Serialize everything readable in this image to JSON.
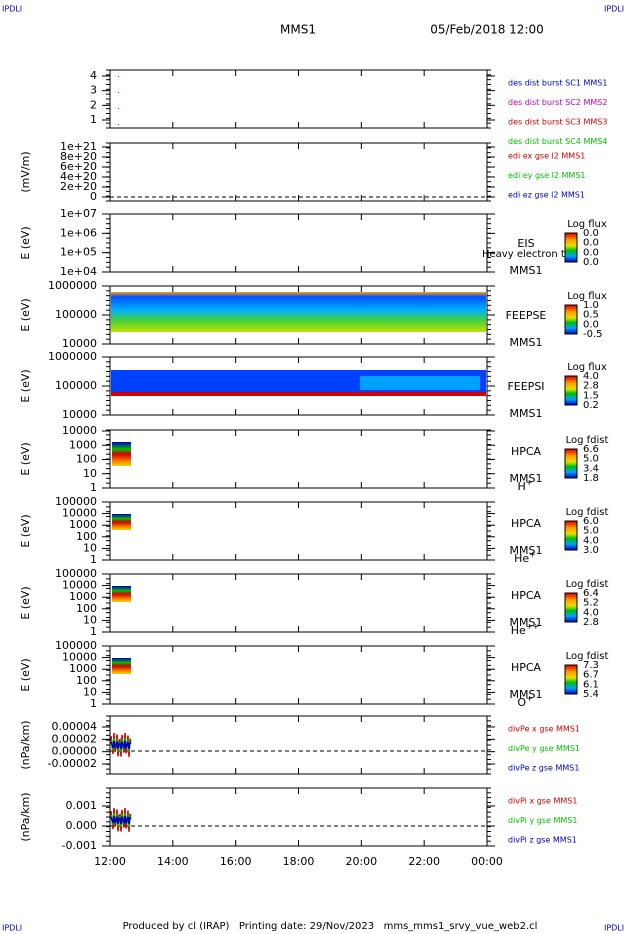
{
  "corner_left": "IPDLI",
  "corner_right": "IPDLI",
  "header": {
    "mission": "MMS1",
    "date": "05/Feb/2018 12:00"
  },
  "panels": [
    {
      "ylabel": "",
      "yticks": [
        "4",
        "3",
        "2",
        "1"
      ],
      "legend": [
        {
          "text": "des dist burst SC1 MMS1",
          "color": "#0000c0"
        },
        {
          "text": "des dist burst SC2 MMS2",
          "color": "#c000c0"
        },
        {
          "text": "des dist burst SC3 MMS3",
          "color": "#d00000"
        },
        {
          "text": "des dist burst SC4 MMS4",
          "color": "#00c000"
        }
      ]
    },
    {
      "ylabel": "(mV/m)",
      "yticks": [
        "1e+21",
        "8e+20",
        "6e+20",
        "4e+20",
        "2e+20",
        "0"
      ],
      "legend": [
        {
          "text": "edi ex gse l2 MMS1",
          "color": "#d00000"
        },
        {
          "text": "edi ey gse l2 MMS1",
          "color": "#00c000"
        },
        {
          "text": "edi ez gse l2 MMS1",
          "color": "#0000c0"
        }
      ]
    },
    {
      "ylabel": "E (eV)",
      "yticks": [
        "1e+07",
        "1e+06",
        "1e+05",
        "1e+04"
      ],
      "instrument": [
        "EIS",
        "MMS1"
      ],
      "note": "Heavy electron to",
      "colorbar": {
        "title": "Log flux",
        "ticks": [
          "0.0",
          "0.0",
          "0.0",
          "0.0"
        ]
      }
    },
    {
      "ylabel": "E (eV)",
      "yticks": [
        "1000000",
        "100000",
        "10000"
      ],
      "instrument": [
        "FEEPSE",
        "MMS1"
      ],
      "colorbar": {
        "title": "Log flux",
        "ticks": [
          "1.0",
          "0.5",
          "0.0",
          "-0.5"
        ]
      }
    },
    {
      "ylabel": "E (eV)",
      "yticks": [
        "1000000",
        "100000",
        "10000"
      ],
      "instrument": [
        "FEEPSI",
        "MMS1"
      ],
      "colorbar": {
        "title": "Log flux",
        "ticks": [
          "4.0",
          "2.8",
          "1.5",
          "0.2"
        ]
      }
    },
    {
      "ylabel": "E (eV)",
      "yticks": [
        "10000",
        "1000",
        "100",
        "10",
        "1"
      ],
      "instrument": [
        "HPCA",
        "MMS1"
      ],
      "species": {
        "base": "H",
        "sup": "+"
      },
      "colorbar": {
        "title": "Log fdist",
        "ticks": [
          "6.6",
          "5.0",
          "3.4",
          "1.8"
        ]
      }
    },
    {
      "ylabel": "E (eV)",
      "yticks": [
        "100000",
        "10000",
        "1000",
        "100",
        "10",
        "1"
      ],
      "instrument": [
        "HPCA",
        "MMS1"
      ],
      "species": {
        "base": "He",
        "sup": "+"
      },
      "colorbar": {
        "title": "Log fdist",
        "ticks": [
          "6.0",
          "5.0",
          "4.0",
          "3.0"
        ]
      }
    },
    {
      "ylabel": "E (eV)",
      "yticks": [
        "100000",
        "10000",
        "1000",
        "100",
        "10",
        "1"
      ],
      "instrument": [
        "HPCA",
        "MMS1"
      ],
      "species": {
        "base": "He",
        "sup": "++"
      },
      "colorbar": {
        "title": "Log fdist",
        "ticks": [
          "6.4",
          "5.2",
          "4.0",
          "2.8"
        ]
      }
    },
    {
      "ylabel": "E (eV)",
      "yticks": [
        "100000",
        "10000",
        "1000",
        "100",
        "10",
        "1"
      ],
      "instrument": [
        "HPCA",
        "MMS1"
      ],
      "species": {
        "base": "O",
        "sup": "+"
      },
      "colorbar": {
        "title": "Log fdist",
        "ticks": [
          "7.3",
          "6.7",
          "6.1",
          "5.4"
        ]
      }
    },
    {
      "ylabel": "(nPa/km)",
      "yticks": [
        "0.00004",
        "0.00002",
        "0.00000",
        "-0.00002"
      ],
      "legend": [
        {
          "text": "divPe x gse MMS1",
          "color": "#d00000"
        },
        {
          "text": "divPe y gse MMS1",
          "color": "#00c000"
        },
        {
          "text": "divPe z gse MMS1",
          "color": "#0000c0"
        }
      ]
    },
    {
      "ylabel": "(nPa/km)",
      "yticks": [
        "0.001",
        "0.000",
        "-0.001"
      ],
      "legend": [
        {
          "text": "divPi x gse MMS1",
          "color": "#d00000"
        },
        {
          "text": "divPi y gse MMS1",
          "color": "#00c000"
        },
        {
          "text": "divPi z gse MMS1",
          "color": "#0000c0"
        }
      ]
    }
  ],
  "xticks": [
    "12:00",
    "14:00",
    "16:00",
    "18:00",
    "20:00",
    "22:00",
    "00:00"
  ],
  "footer": "Produced by cl (IRAP)   Printing date: 29/Nov/2023   mms_mms1_srvy_vue_web2.cl"
}
